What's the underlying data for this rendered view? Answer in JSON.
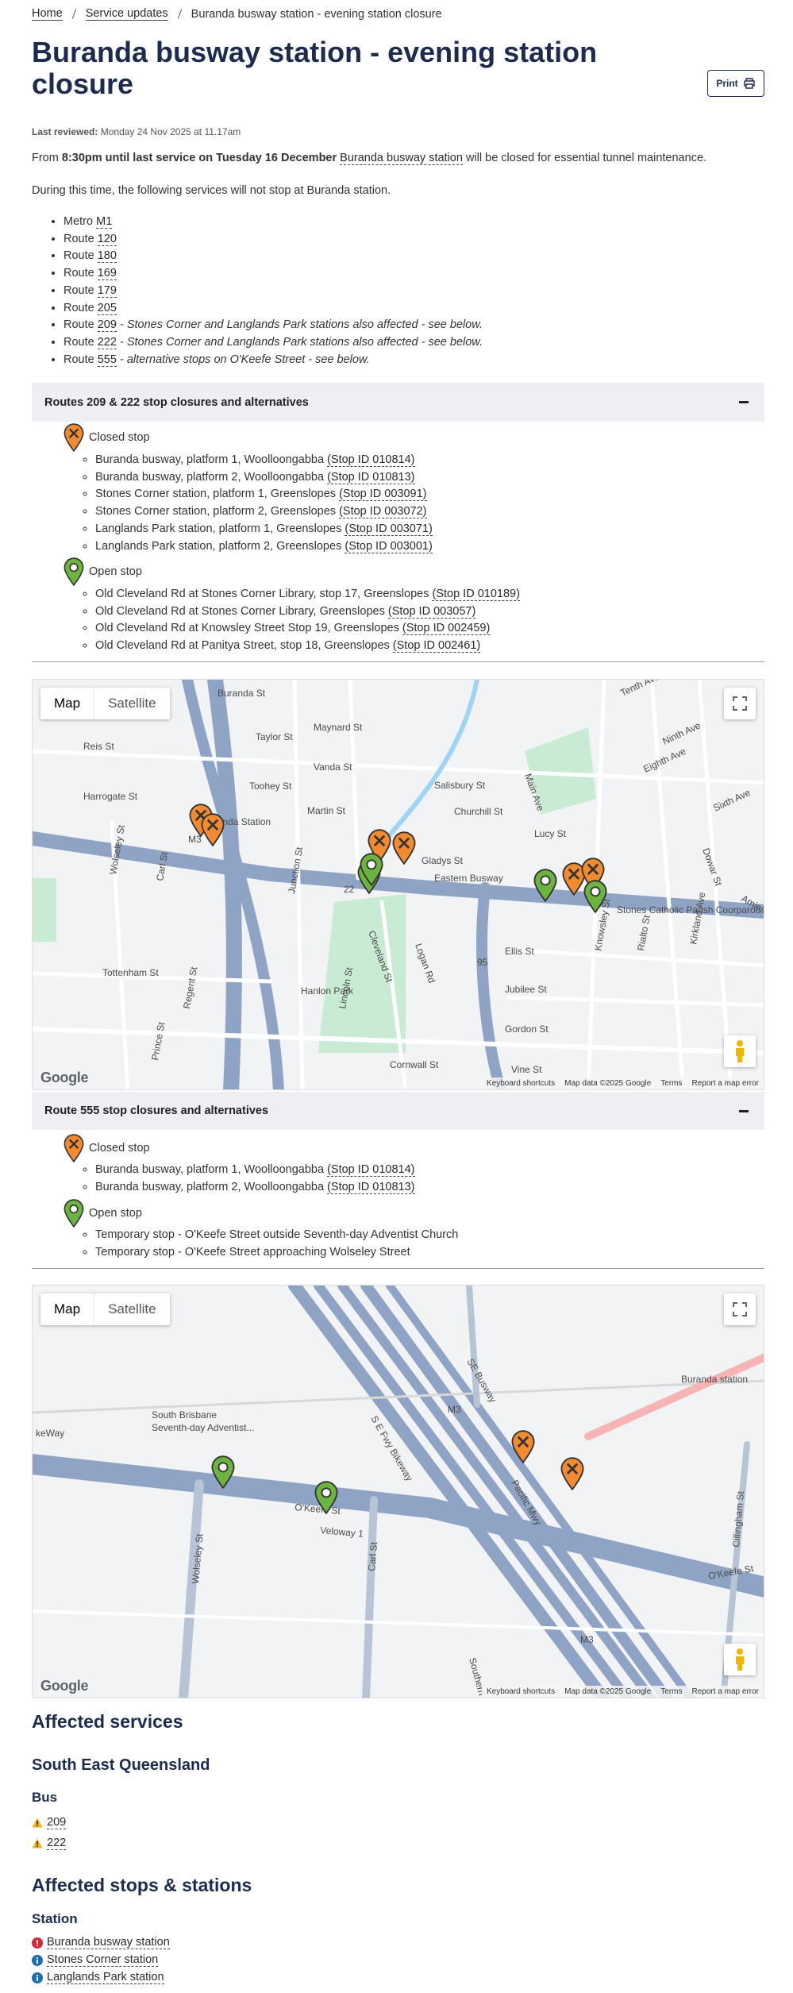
{
  "breadcrumb": [
    "Home",
    "Service updates",
    "Buranda busway station - evening station closure"
  ],
  "title": "Buranda busway station - evening station closure",
  "print_button": "Print",
  "last_reviewed": {
    "label": "Last reviewed:",
    "value": "Monday 24 Nov 2025 at 11.17am"
  },
  "intro": {
    "prefix": "From",
    "bold": "8:30pm until last service on Tuesday 16 December",
    "link": "Buranda busway station",
    "suffix": "will be closed for essential tunnel maintenance."
  },
  "during": "During this time, the following services will not stop at Buranda station.",
  "services": [
    {
      "label": "Metro",
      "link": "M1"
    },
    {
      "label": "Route",
      "link": "120"
    },
    {
      "label": "Route",
      "link": "180"
    },
    {
      "label": "Route",
      "link": "169"
    },
    {
      "label": "Route",
      "link": "179"
    },
    {
      "label": "Route",
      "link": "205"
    },
    {
      "label": "Route",
      "link": "209",
      "note": "- Stones Corner and Langlands Park stations also affected - see below."
    },
    {
      "label": "Route",
      "link": "222",
      "note": "- Stones Corner and Langlands Park stations also affected - see below."
    },
    {
      "label": "Route",
      "link": "555",
      "note": "- alternative stops on O'Keefe Street - see below."
    }
  ],
  "sections": [
    {
      "heading": "Routes 209 & 222 stop closures and alternatives",
      "closed_label": "Closed stop",
      "closed_stops": [
        {
          "text": "Buranda busway, platform 1, Woolloongabba",
          "stop_id": "(Stop ID 010814)"
        },
        {
          "text": "Buranda busway, platform 2, Woolloongabba",
          "stop_id": "(Stop ID 010813)"
        },
        {
          "text": "Stones Corner station, platform 1, Greenslopes",
          "stop_id": "(Stop ID 003091)"
        },
        {
          "text": "Stones Corner station, platform 2, Greenslopes",
          "stop_id": "(Stop ID 003072)"
        },
        {
          "text": "Langlands Park station, platform 1, Greenslopes",
          "stop_id": "(Stop ID 003071)"
        },
        {
          "text": "Langlands Park station, platform 2, Greenslopes",
          "stop_id": "(Stop ID 003001)"
        }
      ],
      "open_label": "Open stop",
      "open_stops": [
        {
          "text": "Old Cleveland Rd at Stones Corner Library, stop 17, Greenslopes",
          "stop_id": "(Stop ID 010189)"
        },
        {
          "text": "Old Cleveland Rd at Stones Corner Library, Greenslopes",
          "stop_id": "(Stop ID 003057)"
        },
        {
          "text": "Old Cleveland Rd at Knowsley Street Stop 19, Greenslopes",
          "stop_id": "(Stop ID 002459)"
        },
        {
          "text": "Old Cleveland Rd at Panitya Street, stop 18, Greenslopes",
          "stop_id": "(Stop ID 002461)"
        }
      ],
      "map": {
        "buttons": [
          "Map",
          "Satellite"
        ],
        "labels": [
          "Buranda St",
          "Maynard St",
          "Taylor St",
          "Reis St",
          "Vanda St",
          "Toohey St",
          "Harrogate St",
          "Salisbury St",
          "Churchill St",
          "Tenth Ave",
          "Ninth Ave",
          "Eighth Ave",
          "Sixth Ave",
          "Lucy St",
          "Buranda Station",
          "Martin St",
          "Eastern Busway",
          "Gladys St",
          "Wolseley St",
          "Carl St",
          "Junction St",
          "Cleveland St",
          "Logan Rd",
          "Ellis St",
          "Jubilee St",
          "Gordon St",
          "Tottenham St",
          "Hanlon Park",
          "Lincoln St",
          "Regent St",
          "Cornwall St",
          "Knowsley St",
          "Rialto St",
          "Kirkland Ave",
          "Amies St",
          "Dowar St",
          "Stones Catholic Parish Coorparoo",
          "Vine St",
          "Prince St",
          "Main Ave",
          "M3",
          "22",
          "95"
        ],
        "logo": "Google",
        "footer": [
          "Keyboard shortcuts",
          "Map data ©2025 Google",
          "Terms",
          "Report a map error"
        ]
      }
    },
    {
      "heading": "Route 555 stop closures and alternatives",
      "closed_label": "Closed stop",
      "closed_stops": [
        {
          "text": "Buranda busway, platform 1, Woolloongabba",
          "stop_id": "(Stop ID 010814)"
        },
        {
          "text": "Buranda busway, platform 2, Woolloongabba",
          "stop_id": "(Stop ID 010813)"
        }
      ],
      "open_label": "Open stop",
      "open_stops": [
        {
          "text": "Temporary stop - O'Keefe Street outside Seventh-day Adventist Church"
        },
        {
          "text": "Temporary stop - O'Keefe Street approaching Wolseley Street"
        }
      ],
      "map": {
        "buttons": [
          "Map",
          "Satellite"
        ],
        "labels": [
          "Buranda station",
          "South Brisbane",
          "Seventh-day Adventist...",
          "S E Fwy Bikeway",
          "SE Busway",
          "Pacific Mwy",
          "O'Keefe St",
          "Veloway 1",
          "Wolseley St",
          "Carl St",
          "O'Keefe St",
          "Cillingham St",
          "Southern Access",
          "keWay",
          "M3",
          "M3"
        ],
        "logo": "Google",
        "footer": [
          "Keyboard shortcuts",
          "Map data ©2025 Google",
          "Terms",
          "Report a map error"
        ]
      }
    }
  ],
  "affected_services": {
    "heading": "Affected services",
    "region": "South East Queensland",
    "mode": "Bus",
    "routes": [
      "209",
      "222"
    ]
  },
  "affected_stops": {
    "heading": "Affected stops & stations",
    "mode": "Station",
    "stops": [
      "Buranda busway station",
      "Stones Corner station",
      "Langlands Park station"
    ]
  }
}
